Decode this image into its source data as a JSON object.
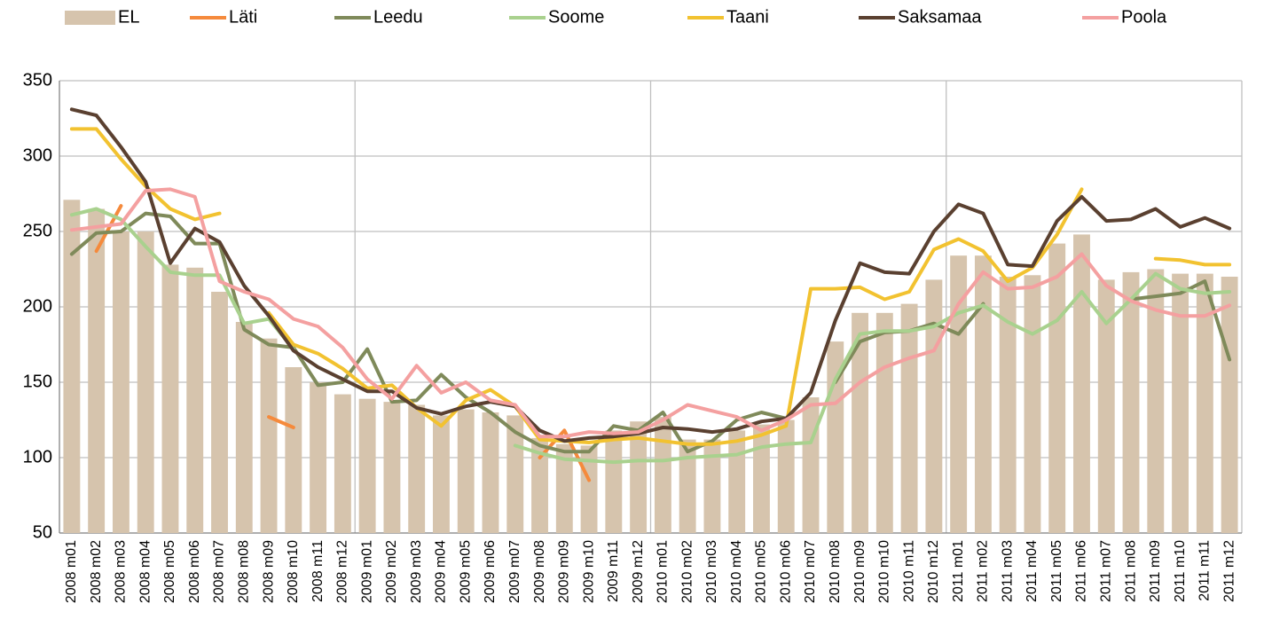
{
  "chart_data": {
    "type": "combo",
    "categories": [
      "2008 m01",
      "2008 m02",
      "2008 m03",
      "2008 m04",
      "2008 m05",
      "2008 m06",
      "2008 m07",
      "2008 m08",
      "2008 m09",
      "2008 m10",
      "2008 m11",
      "2008 m12",
      "2009 m01",
      "2009 m02",
      "2009 m03",
      "2009 m04",
      "2009 m05",
      "2009 m06",
      "2009 m07",
      "2009 m08",
      "2009 m09",
      "2009 m10",
      "2009 m11",
      "2009 m12",
      "2010 m01",
      "2010 m02",
      "2010 m03",
      "2010 m04",
      "2010 m05",
      "2010 m06",
      "2010 m07",
      "2010 m08",
      "2010 m09",
      "2010 m10",
      "2010 m11",
      "2010 m12",
      "2011 m01",
      "2011 m02",
      "2011 m03",
      "2011 m04",
      "2011 m05",
      "2011 m06",
      "2011 m07",
      "2011 m08",
      "2011 m09",
      "2011 m10",
      "2011 m11",
      "2011 m12"
    ],
    "series": [
      {
        "name": "EL",
        "type": "bar",
        "color": "#d6c4ad",
        "values": [
          271,
          265,
          250,
          250,
          228,
          226,
          210,
          190,
          179,
          160,
          150,
          142,
          139,
          137,
          135,
          128,
          132,
          130,
          128,
          113,
          109,
          108,
          118,
          124,
          127,
          112,
          112,
          118,
          122,
          125,
          140,
          177,
          196,
          196,
          202,
          218,
          234,
          234,
          220,
          221,
          242,
          248,
          218,
          223,
          225,
          222,
          222,
          220
        ]
      },
      {
        "name": "Läti",
        "type": "line",
        "color": "#f58a3c",
        "values": [
          null,
          237,
          267,
          null,
          null,
          null,
          null,
          null,
          127,
          120,
          null,
          null,
          null,
          null,
          null,
          null,
          null,
          null,
          null,
          100,
          118,
          85,
          null,
          null,
          null,
          null,
          null,
          null,
          null,
          null,
          null,
          null,
          null,
          null,
          null,
          null,
          null,
          null,
          null,
          null,
          null,
          null,
          null,
          null,
          null,
          null,
          null,
          null
        ]
      },
      {
        "name": "Leedu",
        "type": "line",
        "color": "#7f8a5a",
        "values": [
          235,
          249,
          250,
          262,
          260,
          242,
          242,
          185,
          175,
          173,
          148,
          150,
          172,
          137,
          138,
          155,
          140,
          130,
          117,
          108,
          104,
          104,
          121,
          118,
          130,
          104,
          111,
          125,
          130,
          126,
          null,
          150,
          177,
          183,
          184,
          189,
          182,
          202,
          null,
          null,
          null,
          null,
          null,
          205,
          207,
          209,
          217,
          165
        ]
      },
      {
        "name": "Soome",
        "type": "line",
        "color": "#a9d18e",
        "values": [
          261,
          265,
          258,
          240,
          223,
          221,
          221,
          189,
          192,
          172,
          null,
          null,
          null,
          null,
          null,
          null,
          null,
          null,
          108,
          103,
          99,
          98,
          97,
          98,
          98,
          100,
          101,
          102,
          107,
          109,
          110,
          152,
          182,
          184,
          184,
          187,
          196,
          201,
          190,
          182,
          191,
          210,
          189,
          205,
          222,
          212,
          209,
          210
        ]
      },
      {
        "name": "Taani",
        "type": "line",
        "color": "#f2c230",
        "values": [
          318,
          318,
          298,
          280,
          265,
          258,
          262,
          null,
          196,
          175,
          169,
          159,
          146,
          148,
          133,
          121,
          138,
          145,
          134,
          112,
          111,
          110,
          112,
          113,
          111,
          109,
          109,
          111,
          115,
          121,
          212,
          212,
          213,
          205,
          210,
          238,
          245,
          237,
          217,
          226,
          248,
          278,
          null,
          null,
          232,
          231,
          228,
          228
        ]
      },
      {
        "name": "Saksamaa",
        "type": "line",
        "color": "#5a4030",
        "values": [
          331,
          327,
          306,
          283,
          229,
          252,
          243,
          214,
          194,
          171,
          160,
          152,
          144,
          144,
          133,
          129,
          134,
          137,
          134,
          118,
          111,
          113,
          114,
          116,
          120,
          119,
          117,
          119,
          124,
          126,
          143,
          191,
          229,
          223,
          222,
          250,
          268,
          262,
          228,
          227,
          257,
          273,
          257,
          258,
          265,
          253,
          259,
          252
        ]
      },
      {
        "name": "Poola",
        "type": "line",
        "color": "#f4a0a0",
        "values": [
          251,
          253,
          255,
          277,
          278,
          273,
          217,
          210,
          205,
          192,
          187,
          173,
          152,
          139,
          161,
          143,
          150,
          138,
          135,
          114,
          114,
          117,
          116,
          117,
          125,
          135,
          131,
          127,
          118,
          125,
          135,
          136,
          150,
          160,
          166,
          171,
          202,
          223,
          212,
          213,
          220,
          235,
          214,
          204,
          198,
          194,
          194,
          201
        ]
      }
    ],
    "ylim": [
      50,
      350
    ],
    "yticks": [
      50,
      100,
      150,
      200,
      250,
      300,
      350
    ],
    "grid": true,
    "legend": "top"
  }
}
